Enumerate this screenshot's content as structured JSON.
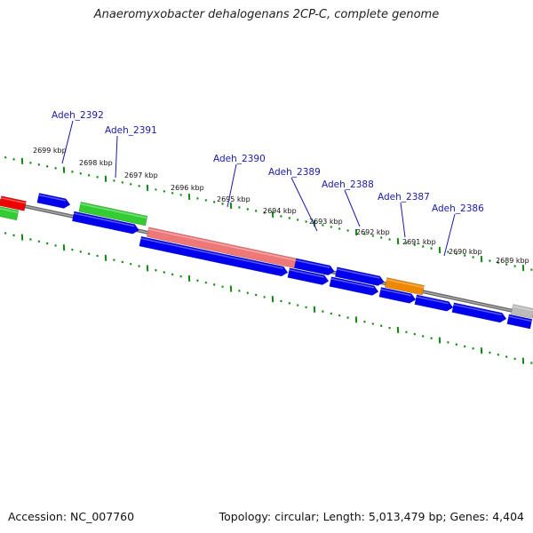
{
  "title": "Anaeromyxobacter dehalogenans 2CP-C, complete genome",
  "footer": {
    "accession": "Accession: NC_007760",
    "topology": "Topology: circular; Length: 5,013,479 bp; Genes: 4,404"
  },
  "colors": {
    "blue": "#0000ee",
    "green": "#33cc33",
    "pink": "#ee7777",
    "orange": "#ee8800",
    "red": "#ee0000",
    "gray": "#bbbbbb",
    "backbone": "#888888",
    "ticks": "#118811",
    "label": "#1a1aa8"
  },
  "kbp_labels": [
    "2699 kbp",
    "2698 kbp",
    "2697 kbp",
    "2696 kbp",
    "2695 kbp",
    "2694 kbp",
    "2693 kbp",
    "2692 kbp",
    "2691 kbp",
    "2690 kbp",
    "2689 kbp"
  ],
  "gene_labels": [
    "Adeh_2392",
    "Adeh_2391",
    "Adeh_2390",
    "Adeh_2389",
    "Adeh_2388",
    "Adeh_2387",
    "Adeh_2386"
  ]
}
